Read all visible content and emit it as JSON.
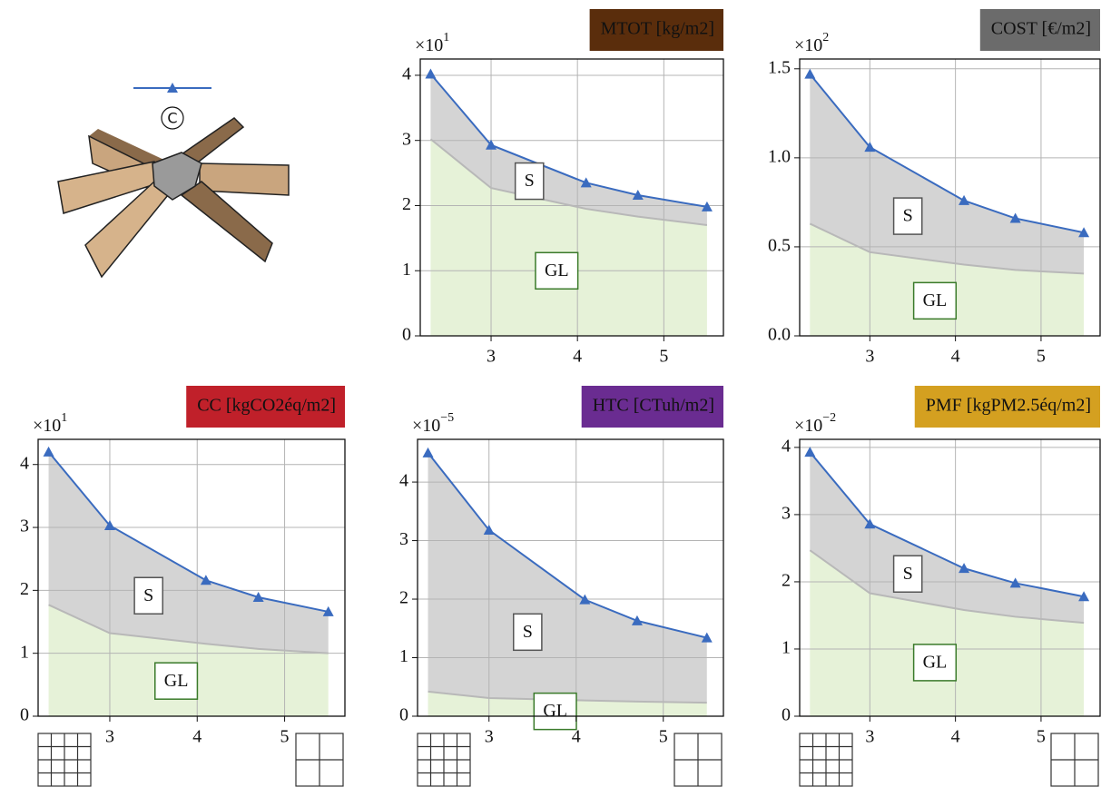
{
  "legend": {
    "marker_label": "C"
  },
  "chart_data": [
    {
      "type": "area",
      "title": "MTOT [kg/m2]",
      "title_color": "#5a2d0c",
      "y_offset": {
        "base": "×10",
        "exponent": "1"
      },
      "x": [
        2.3,
        3.0,
        4.1,
        4.7,
        5.5
      ],
      "xlim": [
        2.18,
        5.69
      ],
      "xticks": [
        3,
        4,
        5
      ],
      "ylim": [
        0,
        4.25
      ],
      "yticks": [
        0,
        1,
        2,
        3,
        4
      ],
      "grid": true,
      "stacked": true,
      "series": [
        {
          "name": "GL",
          "color": "#e6f2d8",
          "line_color": "#b8b8b8",
          "label_color": "#3a7a2a",
          "values": [
            3.02,
            2.27,
            1.95,
            1.83,
            1.7
          ]
        },
        {
          "name": "S",
          "color": "#d4d4d4",
          "line_color": "#3a6bbf",
          "label_color": "#555555",
          "marker": "triangle",
          "values": [
            1.0,
            0.66,
            0.4,
            0.33,
            0.28
          ]
        }
      ]
    },
    {
      "type": "area",
      "title": "COST [€/m2]",
      "title_color": "#6b6b6b",
      "y_offset": {
        "base": "×10",
        "exponent": "2"
      },
      "x": [
        2.3,
        3.0,
        4.1,
        4.7,
        5.5
      ],
      "xlim": [
        2.18,
        5.69
      ],
      "xticks": [
        3,
        4,
        5
      ],
      "ylim": [
        0,
        1.555
      ],
      "yticks": [
        {
          "value": 0,
          "label": "0.0"
        },
        {
          "value": 0.5,
          "label": "0.5"
        },
        {
          "value": 1,
          "label": "1.0"
        },
        {
          "value": 1.5,
          "label": "1.5"
        }
      ],
      "grid": true,
      "stacked": true,
      "series": [
        {
          "name": "GL",
          "color": "#e6f2d8",
          "line_color": "#b8b8b8",
          "label_color": "#3a7a2a",
          "values": [
            0.63,
            0.47,
            0.4,
            0.37,
            0.35
          ]
        },
        {
          "name": "S",
          "color": "#d4d4d4",
          "line_color": "#3a6bbf",
          "label_color": "#555555",
          "marker": "triangle",
          "values": [
            0.84,
            0.59,
            0.36,
            0.29,
            0.23
          ]
        }
      ]
    },
    {
      "type": "area",
      "title": "CC [kgCO2éq/m2]",
      "title_color": "#c0202a",
      "y_offset": {
        "base": "×10",
        "exponent": "1"
      },
      "x": [
        2.3,
        3.0,
        4.1,
        4.7,
        5.5
      ],
      "xlim": [
        2.18,
        5.69
      ],
      "xticks": [
        3,
        4,
        5
      ],
      "ylim": [
        0,
        4.4
      ],
      "yticks": [
        0,
        1,
        2,
        3,
        4
      ],
      "grid": true,
      "stacked": true,
      "series": [
        {
          "name": "GL",
          "color": "#e6f2d8",
          "line_color": "#b8b8b8",
          "label_color": "#3a7a2a",
          "values": [
            1.77,
            1.32,
            1.15,
            1.07,
            1.0
          ]
        },
        {
          "name": "S",
          "color": "#d4d4d4",
          "line_color": "#3a6bbf",
          "label_color": "#555555",
          "marker": "triangle",
          "values": [
            2.43,
            1.71,
            1.01,
            0.82,
            0.66
          ]
        }
      ]
    },
    {
      "type": "area",
      "title": "HTC [CTuh/m2]",
      "title_color": "#6a2c91",
      "y_offset": {
        "base": "×10",
        "exponent": "−5"
      },
      "x": [
        2.3,
        3.0,
        4.1,
        4.7,
        5.5
      ],
      "xlim": [
        2.18,
        5.69
      ],
      "xticks": [
        3,
        4,
        5
      ],
      "ylim": [
        0,
        4.73
      ],
      "yticks": [
        0,
        1,
        2,
        3,
        4
      ],
      "grid": true,
      "stacked": true,
      "series": [
        {
          "name": "GL",
          "color": "#e6f2d8",
          "line_color": "#b8b8b8",
          "label_color": "#3a7a2a",
          "values": [
            0.42,
            0.31,
            0.27,
            0.25,
            0.23
          ]
        },
        {
          "name": "S",
          "color": "#d4d4d4",
          "line_color": "#3a6bbf",
          "label_color": "#555555",
          "marker": "triangle",
          "values": [
            4.08,
            2.87,
            1.72,
            1.38,
            1.11
          ]
        }
      ]
    },
    {
      "type": "area",
      "title": "PMF [kgPM2.5éq/m2]",
      "title_color": "#d4a020",
      "y_offset": {
        "base": "×10",
        "exponent": "−2"
      },
      "x": [
        2.3,
        3.0,
        4.1,
        4.7,
        5.5
      ],
      "xlim": [
        2.18,
        5.69
      ],
      "xticks": [
        3,
        4,
        5
      ],
      "ylim": [
        0,
        4.12
      ],
      "yticks": [
        0,
        1,
        2,
        3,
        4
      ],
      "grid": true,
      "stacked": true,
      "series": [
        {
          "name": "GL",
          "color": "#e6f2d8",
          "line_color": "#b8b8b8",
          "label_color": "#3a7a2a",
          "values": [
            2.47,
            1.83,
            1.58,
            1.48,
            1.39
          ]
        },
        {
          "name": "S",
          "color": "#d4d4d4",
          "line_color": "#3a6bbf",
          "label_color": "#555555",
          "marker": "triangle",
          "values": [
            1.46,
            1.03,
            0.62,
            0.5,
            0.39
          ]
        }
      ]
    }
  ]
}
